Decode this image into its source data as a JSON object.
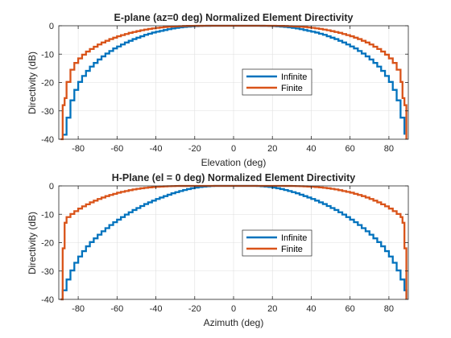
{
  "chart_data": [
    {
      "type": "line",
      "title": "E-plane (az=0 deg) Normalized Element Directivity",
      "xlabel": "Elevation (deg)",
      "ylabel": "Directivity (dB)",
      "xlim": [
        -90,
        90
      ],
      "ylim": [
        -40,
        0
      ],
      "xticks": [
        -80,
        -60,
        -40,
        -20,
        0,
        20,
        40,
        60,
        80
      ],
      "yticks": [
        0,
        -10,
        -20,
        -30,
        -40
      ],
      "grid": true,
      "legend_position": "center-right",
      "series": [
        {
          "name": "Infinite",
          "color": "#0072BD",
          "x": [
            -88,
            -86,
            -84,
            -82,
            -80,
            -78,
            -76,
            -74,
            -72,
            -70,
            -68,
            -66,
            -64,
            -62,
            -60,
            -58,
            -56,
            -54,
            -52,
            -50,
            -48,
            -46,
            -44,
            -42,
            -40,
            -38,
            -36,
            -34,
            -32,
            -30,
            -28,
            -26,
            -24,
            -22,
            -20,
            -18,
            -16,
            -14,
            -12,
            -10,
            -8,
            -6,
            -4,
            -2,
            0,
            2,
            4,
            6,
            8,
            10,
            12,
            14,
            16,
            18,
            20,
            22,
            24,
            26,
            28,
            30,
            32,
            34,
            36,
            38,
            40,
            42,
            44,
            46,
            48,
            50,
            52,
            54,
            56,
            58,
            60,
            62,
            64,
            66,
            68,
            70,
            72,
            74,
            76,
            78,
            80,
            82,
            84,
            86,
            88
          ],
          "y": [
            -38.4,
            -32.4,
            -26.3,
            -22.6,
            -19.8,
            -17.7,
            -15.9,
            -14.4,
            -13.1,
            -11.9,
            -10.8,
            -9.8,
            -8.9,
            -8.0,
            -7.3,
            -6.6,
            -5.9,
            -5.3,
            -4.7,
            -4.2,
            -3.7,
            -3.2,
            -2.8,
            -2.4,
            -2.1,
            -1.8,
            -1.5,
            -1.2,
            -0.95,
            -0.75,
            -0.57,
            -0.42,
            -0.3,
            -0.2,
            -0.13,
            -0.07,
            -0.03,
            -0.01,
            0,
            0,
            0,
            0,
            0,
            0,
            0,
            0,
            0,
            0,
            0,
            0,
            0,
            -0.01,
            -0.03,
            -0.07,
            -0.13,
            -0.2,
            -0.3,
            -0.42,
            -0.57,
            -0.75,
            -0.95,
            -1.2,
            -1.5,
            -1.8,
            -2.1,
            -2.4,
            -2.8,
            -3.2,
            -3.7,
            -4.2,
            -4.7,
            -5.3,
            -5.9,
            -6.6,
            -7.3,
            -8.0,
            -8.9,
            -9.8,
            -10.8,
            -11.9,
            -13.1,
            -14.4,
            -15.9,
            -17.7,
            -19.8,
            -22.6,
            -26.3,
            -32.4,
            -38.4
          ]
        },
        {
          "name": "Finite",
          "color": "#D95319",
          "x": [
            -89,
            -88,
            -87,
            -86,
            -84,
            -82,
            -80,
            -78,
            -76,
            -74,
            -72,
            -70,
            -68,
            -66,
            -64,
            -62,
            -60,
            -58,
            -56,
            -54,
            -52,
            -50,
            -48,
            -46,
            -44,
            -42,
            -40,
            -38,
            -36,
            -34,
            -32,
            -30,
            -28,
            -26,
            -24,
            -22,
            -20,
            -18,
            -16,
            -14,
            -12,
            -10,
            -8,
            -6,
            -4,
            -2,
            0,
            2,
            4,
            6,
            8,
            10,
            12,
            14,
            16,
            18,
            20,
            22,
            24,
            26,
            28,
            30,
            32,
            34,
            36,
            38,
            40,
            42,
            44,
            46,
            48,
            50,
            52,
            54,
            56,
            58,
            60,
            62,
            64,
            66,
            68,
            70,
            72,
            74,
            76,
            78,
            80,
            82,
            84,
            86,
            87,
            88,
            89
          ],
          "y": [
            -40,
            -28.0,
            -25.5,
            -19.8,
            -15.5,
            -13.1,
            -11.5,
            -10.2,
            -9.1,
            -8.2,
            -7.4,
            -6.6,
            -5.9,
            -5.3,
            -4.7,
            -4.2,
            -3.7,
            -3.3,
            -2.9,
            -2.5,
            -2.2,
            -1.9,
            -1.6,
            -1.35,
            -1.12,
            -0.92,
            -0.75,
            -0.6,
            -0.47,
            -0.36,
            -0.27,
            -0.2,
            -0.14,
            -0.09,
            -0.06,
            -0.03,
            -0.02,
            -0.01,
            0,
            0,
            0,
            0,
            0,
            0,
            0,
            0,
            0,
            0,
            0,
            0,
            0,
            0,
            0,
            0,
            0,
            -0.01,
            -0.02,
            -0.03,
            -0.06,
            -0.09,
            -0.14,
            -0.2,
            -0.27,
            -0.36,
            -0.47,
            -0.6,
            -0.75,
            -0.92,
            -1.12,
            -1.35,
            -1.6,
            -1.9,
            -2.2,
            -2.5,
            -2.9,
            -3.3,
            -3.7,
            -4.2,
            -4.7,
            -5.3,
            -5.9,
            -6.6,
            -7.4,
            -8.2,
            -9.1,
            -10.2,
            -11.5,
            -13.1,
            -15.5,
            -19.8,
            -25.5,
            -28.0,
            -40
          ]
        }
      ]
    },
    {
      "type": "line",
      "title": "H-Plane (el = 0 deg) Normalized Element Directivity",
      "xlabel": "Azimuth (deg)",
      "ylabel": "Directivity (dB)",
      "xlim": [
        -90,
        90
      ],
      "ylim": [
        -40,
        0
      ],
      "xticks": [
        -80,
        -60,
        -40,
        -20,
        0,
        20,
        40,
        60,
        80
      ],
      "yticks": [
        0,
        -10,
        -20,
        -30,
        -40
      ],
      "grid": true,
      "legend_position": "center-right",
      "series": [
        {
          "name": "Infinite",
          "color": "#0072BD",
          "x": [
            -89,
            -88,
            -86,
            -84,
            -82,
            -80,
            -78,
            -76,
            -74,
            -72,
            -70,
            -68,
            -66,
            -64,
            -62,
            -60,
            -58,
            -56,
            -54,
            -52,
            -50,
            -48,
            -46,
            -44,
            -42,
            -40,
            -38,
            -36,
            -34,
            -32,
            -30,
            -28,
            -26,
            -24,
            -22,
            -20,
            -18,
            -16,
            -14,
            -12,
            -10,
            -8,
            -6,
            -4,
            -2,
            0,
            2,
            4,
            6,
            8,
            10,
            12,
            14,
            16,
            18,
            20,
            22,
            24,
            26,
            28,
            30,
            32,
            34,
            36,
            38,
            40,
            42,
            44,
            46,
            48,
            50,
            52,
            54,
            56,
            58,
            60,
            62,
            64,
            66,
            68,
            70,
            72,
            74,
            76,
            78,
            80,
            82,
            84,
            86,
            88,
            89
          ],
          "y": [
            -40,
            -36.8,
            -33.0,
            -29.8,
            -27.1,
            -24.9,
            -23.0,
            -21.3,
            -19.8,
            -18.5,
            -17.2,
            -16.0,
            -14.9,
            -13.8,
            -12.8,
            -11.9,
            -11.0,
            -10.1,
            -9.3,
            -8.5,
            -7.8,
            -7.1,
            -6.4,
            -5.8,
            -5.2,
            -4.6,
            -4.1,
            -3.6,
            -3.1,
            -2.6,
            -2.2,
            -1.8,
            -1.45,
            -1.12,
            -0.84,
            -0.6,
            -0.4,
            -0.24,
            -0.12,
            -0.04,
            0,
            0,
            0,
            0,
            0,
            0,
            0,
            0,
            0,
            0,
            0,
            -0.04,
            -0.12,
            -0.24,
            -0.4,
            -0.6,
            -0.84,
            -1.12,
            -1.45,
            -1.8,
            -2.2,
            -2.6,
            -3.1,
            -3.6,
            -4.1,
            -4.6,
            -5.2,
            -5.8,
            -6.4,
            -7.1,
            -7.8,
            -8.5,
            -9.3,
            -10.1,
            -11.0,
            -11.9,
            -12.8,
            -13.8,
            -14.9,
            -16.0,
            -17.2,
            -18.5,
            -19.8,
            -21.3,
            -23.0,
            -24.9,
            -27.1,
            -29.8,
            -33.0,
            -36.8,
            -40
          ]
        },
        {
          "name": "Finite",
          "color": "#D95319",
          "x": [
            -89,
            -88,
            -87,
            -86,
            -84,
            -82,
            -80,
            -78,
            -76,
            -74,
            -72,
            -70,
            -68,
            -66,
            -64,
            -62,
            -60,
            -58,
            -56,
            -54,
            -52,
            -50,
            -48,
            -46,
            -44,
            -42,
            -40,
            -38,
            -36,
            -34,
            -32,
            -30,
            -28,
            -26,
            -24,
            -22,
            -20,
            -18,
            -16,
            -14,
            -12,
            -10,
            -8,
            -6,
            -4,
            -2,
            0,
            2,
            4,
            6,
            8,
            10,
            12,
            14,
            16,
            18,
            20,
            22,
            24,
            26,
            28,
            30,
            32,
            34,
            36,
            38,
            40,
            42,
            44,
            46,
            48,
            50,
            52,
            54,
            56,
            58,
            60,
            62,
            64,
            66,
            68,
            70,
            72,
            74,
            76,
            78,
            80,
            82,
            84,
            86,
            87,
            88,
            89
          ],
          "y": [
            -40,
            -22.0,
            -13.0,
            -11.0,
            -9.9,
            -8.9,
            -8.0,
            -7.2,
            -6.5,
            -5.8,
            -5.2,
            -4.6,
            -4.1,
            -3.6,
            -3.2,
            -2.8,
            -2.4,
            -2.1,
            -1.8,
            -1.5,
            -1.25,
            -1.03,
            -0.84,
            -0.67,
            -0.53,
            -0.41,
            -0.31,
            -0.23,
            -0.16,
            -0.11,
            -0.07,
            -0.04,
            -0.02,
            -0.01,
            0,
            0,
            0,
            0,
            0,
            0,
            0,
            0,
            0,
            0,
            0,
            0,
            0,
            0,
            0,
            0,
            0,
            0,
            0,
            0,
            0,
            0,
            0,
            0,
            0,
            -0.01,
            -0.02,
            -0.04,
            -0.07,
            -0.11,
            -0.16,
            -0.23,
            -0.31,
            -0.41,
            -0.53,
            -0.67,
            -0.84,
            -1.03,
            -1.25,
            -1.5,
            -1.8,
            -2.1,
            -2.4,
            -2.8,
            -3.2,
            -3.6,
            -4.1,
            -4.6,
            -5.2,
            -5.8,
            -6.5,
            -7.2,
            -8.0,
            -8.9,
            -9.9,
            -11.0,
            -13.0,
            -22.0,
            -40
          ]
        }
      ]
    }
  ]
}
